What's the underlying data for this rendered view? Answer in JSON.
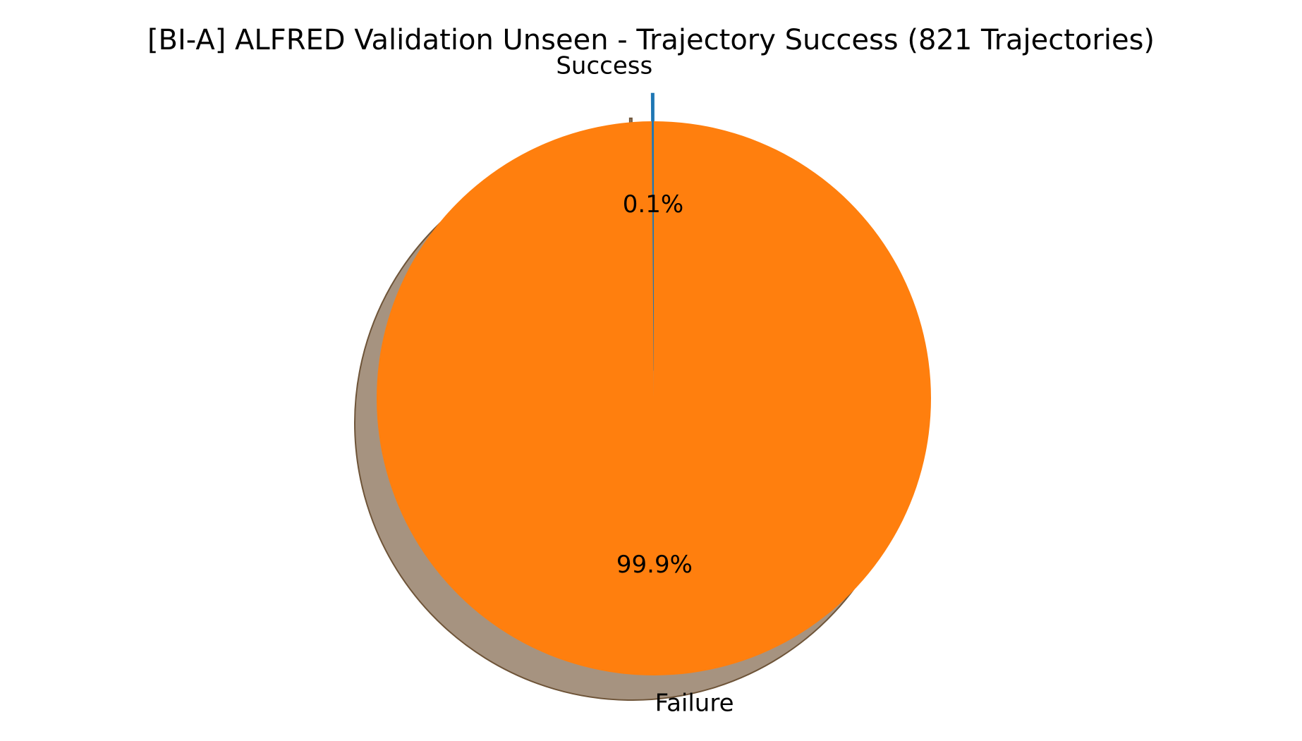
{
  "chart_data": {
    "type": "pie",
    "title": "[BI-A] ALFRED Validation Unseen - Trajectory Success (821 Trajectories)",
    "start_angle_deg": 90,
    "counterclock": true,
    "shadow": true,
    "slices": [
      {
        "label": "Success",
        "percent_label": "0.1%",
        "value": 1,
        "fraction": 0.001218,
        "color": "#1f77b4",
        "exploded": true
      },
      {
        "label": "Failure",
        "percent_label": "99.9%",
        "value": 820,
        "fraction": 0.998782,
        "color": "#ff7f0e",
        "exploded": false
      }
    ],
    "shadow_color": "#a69380",
    "shadow_edge_color": "#6e5438"
  }
}
